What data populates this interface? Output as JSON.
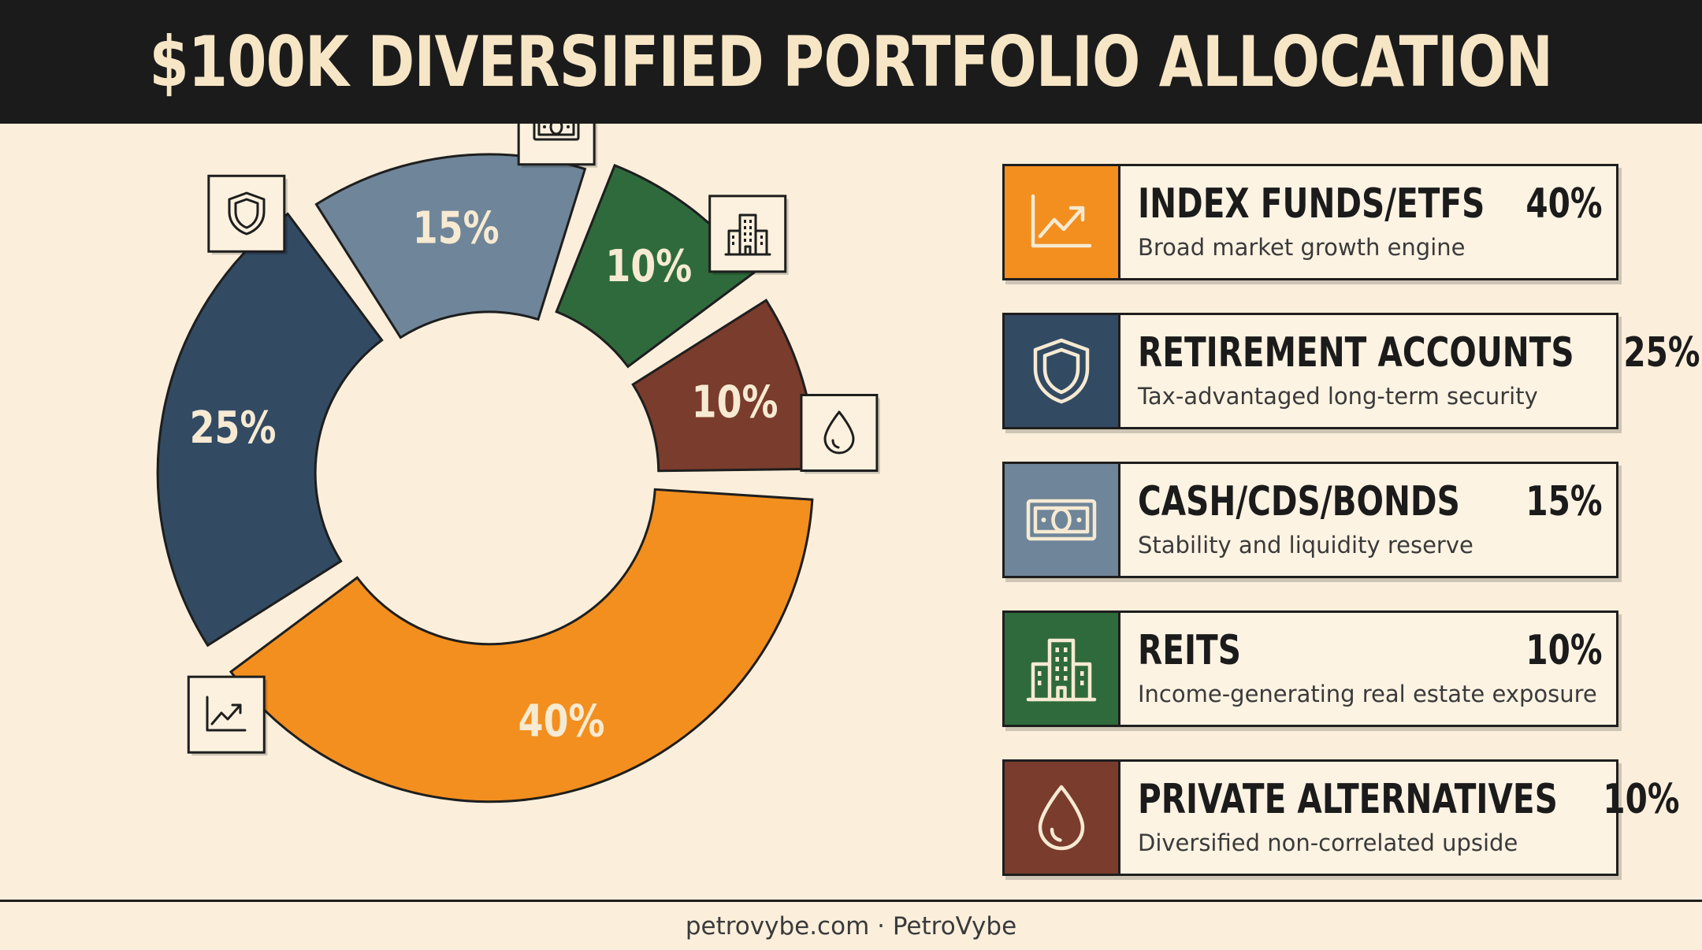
{
  "title": "$100K DIVERSIFIED PORTFOLIO ALLOCATION",
  "footer": "petrovybe.com · PetroVybe",
  "chart_data": {
    "type": "pie",
    "title": "$100K DIVERSIFIED PORTFOLIO ALLOCATION",
    "categories": [
      "INDEX FUNDS/ETFS",
      "RETIREMENT ACCOUNTS",
      "CASH/CDS/BONDS",
      "REITS",
      "PRIVATE ALTERNATIVES"
    ],
    "values": [
      40,
      25,
      15,
      10,
      10
    ],
    "labels": [
      "40%",
      "25%",
      "15%",
      "10%",
      "10%"
    ],
    "colors": [
      "#f28f1f",
      "#334a63",
      "#6f8599",
      "#2f6a3c",
      "#7a3c2c"
    ],
    "icons": [
      "trending-up-icon",
      "shield-icon",
      "banknote-icon",
      "building-icon",
      "droplet-icon"
    ]
  },
  "legend": [
    {
      "title": "INDEX FUNDS/ETFS",
      "pct": "40%",
      "desc": "Broad market growth engine",
      "icon": "trending-up-icon",
      "color": "#f28f1f"
    },
    {
      "title": "RETIREMENT ACCOUNTS",
      "pct": "25%",
      "desc": "Tax-advantaged long-term security",
      "icon": "shield-icon",
      "color": "#334a63"
    },
    {
      "title": "CASH/CDS/BONDS",
      "pct": "15%",
      "desc": "Stability and liquidity reserve",
      "icon": "banknote-icon",
      "color": "#6f8599"
    },
    {
      "title": "REITS",
      "pct": "10%",
      "desc": "Income-generating real estate exposure",
      "icon": "building-icon",
      "color": "#2f6a3c"
    },
    {
      "title": "PRIVATE ALTERNATIVES",
      "pct": "10%",
      "desc": "Diversified non-correlated upside",
      "icon": "droplet-icon",
      "color": "#7a3c2c"
    }
  ]
}
